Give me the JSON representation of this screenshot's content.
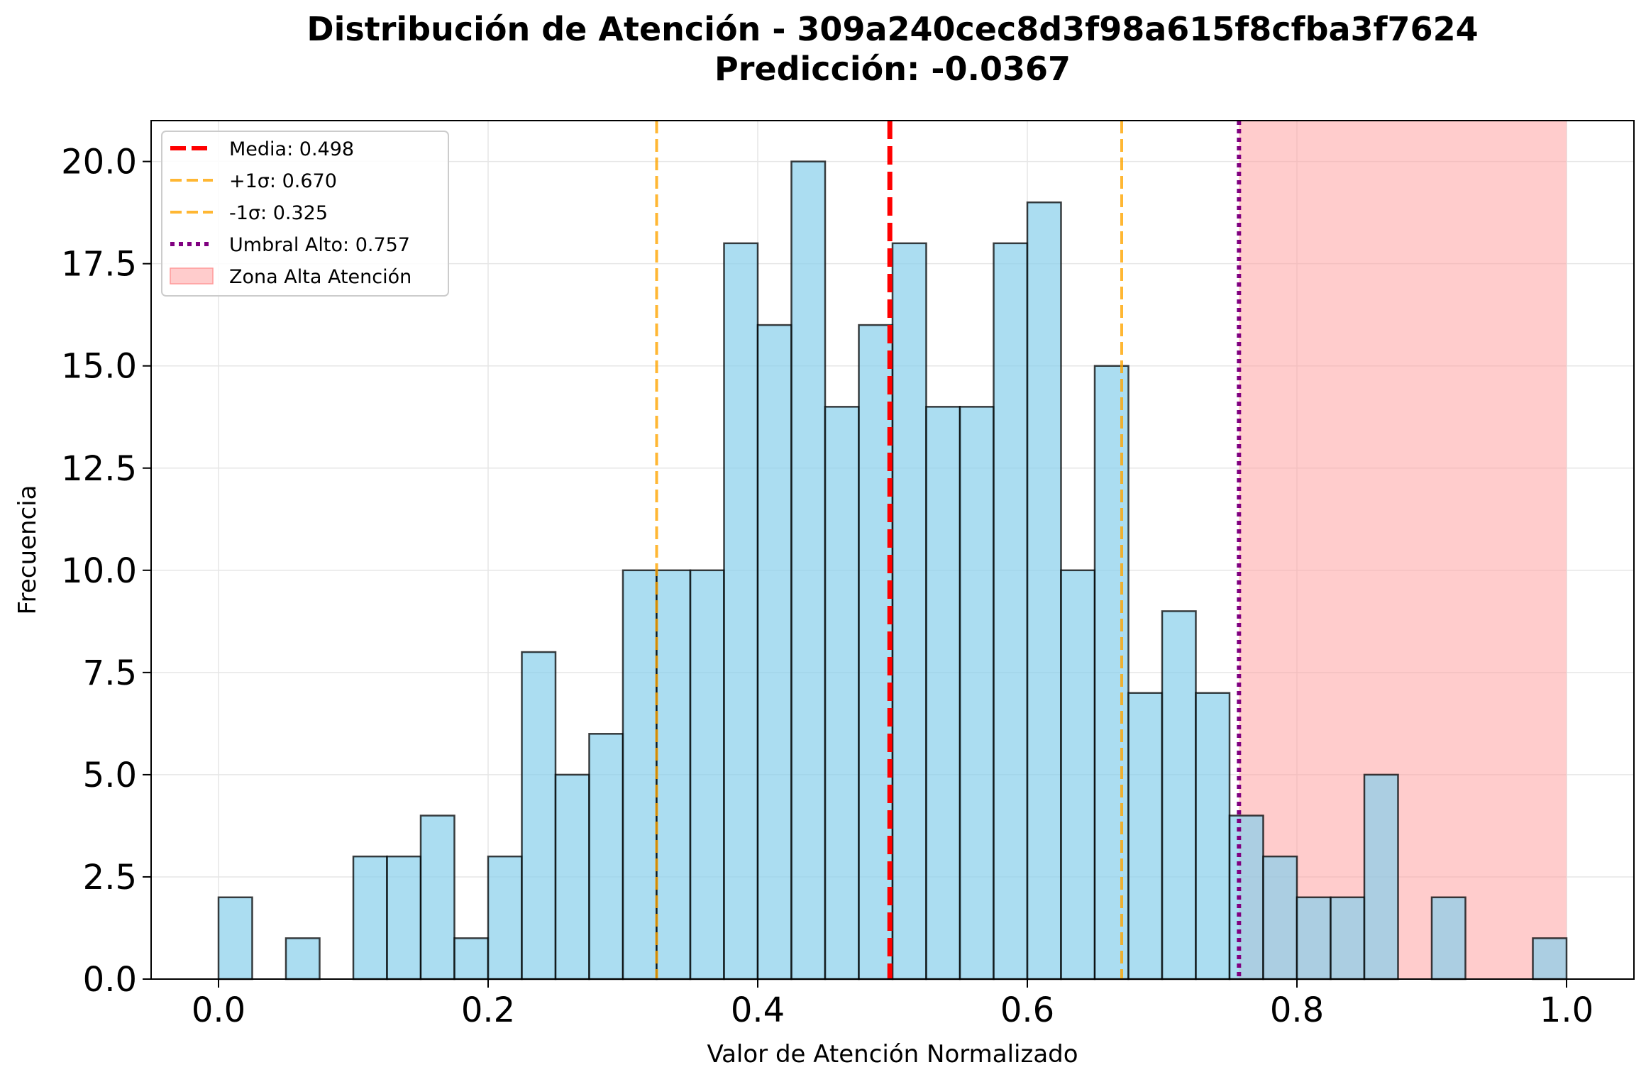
{
  "chart_data": {
    "type": "bar",
    "title": "Distribución de Atención - 309a240cec8d3f98a615f8cfba3f7624",
    "subtitle": "Predicción: -0.0367",
    "xlabel": "Valor de Atención Normalizado",
    "ylabel": "Frecuencia",
    "xlim": [
      -0.05,
      1.05
    ],
    "ylim": [
      0,
      21
    ],
    "xticks": [
      "0.0",
      "0.2",
      "0.4",
      "0.6",
      "0.8",
      "1.0"
    ],
    "yticks": [
      "0.0",
      "2.5",
      "5.0",
      "7.5",
      "10.0",
      "12.5",
      "15.0",
      "17.5",
      "20.0"
    ],
    "grid": true,
    "legend_position": "top-left",
    "bin_width": 0.025,
    "bin_starts": [
      0.0,
      0.025,
      0.05,
      0.075,
      0.1,
      0.125,
      0.15,
      0.175,
      0.2,
      0.225,
      0.25,
      0.275,
      0.3,
      0.325,
      0.35,
      0.375,
      0.4,
      0.425,
      0.45,
      0.475,
      0.5,
      0.525,
      0.55,
      0.575,
      0.6,
      0.625,
      0.65,
      0.675,
      0.7,
      0.725,
      0.75,
      0.775,
      0.8,
      0.825,
      0.85,
      0.875,
      0.9,
      0.925,
      0.95,
      0.975
    ],
    "counts": [
      2,
      0,
      1,
      0,
      3,
      3,
      4,
      1,
      3,
      8,
      5,
      6,
      10,
      10,
      10,
      18,
      16,
      20,
      14,
      16,
      18,
      14,
      14,
      18,
      19,
      10,
      15,
      7,
      9,
      7,
      4,
      3,
      2,
      2,
      5,
      0,
      2,
      0,
      0,
      1
    ],
    "reference_lines": [
      {
        "label": "Media: 0.498",
        "value": 0.498,
        "color": "#ff0000",
        "style": "dashed"
      },
      {
        "label": "+1σ: 0.670",
        "value": 0.67,
        "color": "#ffa500",
        "style": "dashed"
      },
      {
        "label": "-1σ: 0.325",
        "value": 0.325,
        "color": "#ffa500",
        "style": "dashed"
      },
      {
        "label": "Umbral Alto: 0.757",
        "value": 0.757,
        "color": "#800080",
        "style": "dotted"
      }
    ],
    "shaded_region": {
      "label": "Zona Alta Atención",
      "from": 0.757,
      "to": 1.0,
      "color": "#ff9999"
    },
    "colors": {
      "bar_fill": "#87ceeb",
      "bar_edge": "#000000",
      "grid": "#e6e6e6"
    }
  }
}
